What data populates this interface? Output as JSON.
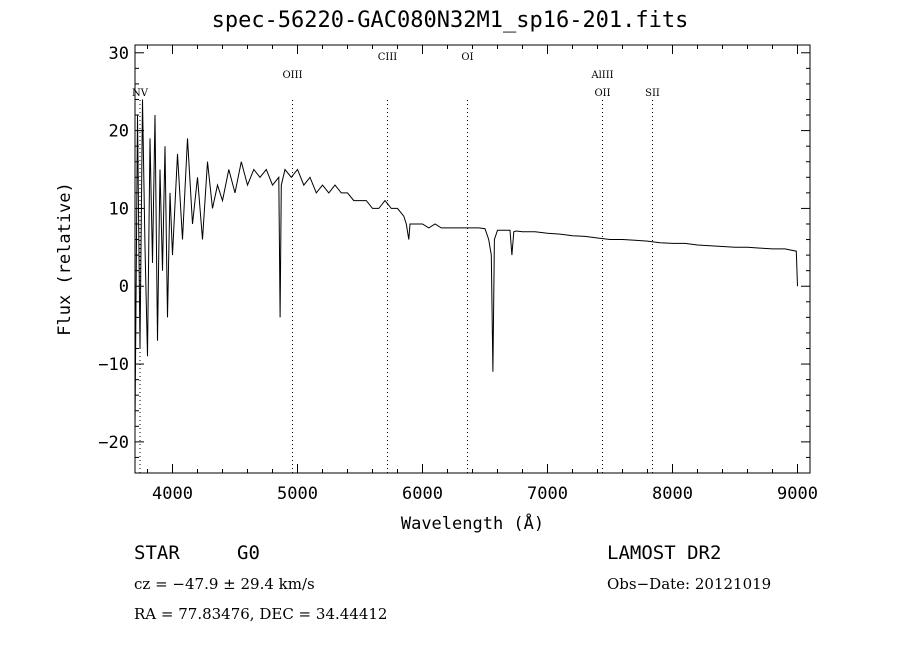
{
  "chart_data": {
    "type": "line",
    "title": "spec-56220-GAC080N32M1_sp16-201.fits",
    "xlabel": "Wavelength (Å)",
    "ylabel": "Flux (relative)",
    "xlim": [
      3700,
      9100
    ],
    "ylim": [
      -24,
      31
    ],
    "x_ticks": [
      "4000",
      "5000",
      "6000",
      "7000",
      "8000",
      "9000"
    ],
    "y_ticks": [
      "30",
      "20",
      "10",
      "0",
      "−10",
      "−20"
    ],
    "x_tick_values": [
      4000,
      5000,
      6000,
      7000,
      8000,
      9000
    ],
    "y_tick_values": [
      30,
      20,
      10,
      0,
      -10,
      -20
    ],
    "grid": false,
    "series": [
      {
        "color": "#000000",
        "x": [
          3700,
          3720,
          3740,
          3760,
          3780,
          3800,
          3820,
          3840,
          3860,
          3880,
          3900,
          3920,
          3940,
          3960,
          3980,
          4000,
          4040,
          4080,
          4120,
          4160,
          4200,
          4240,
          4280,
          4320,
          4360,
          4400,
          4450,
          4500,
          4550,
          4600,
          4650,
          4700,
          4750,
          4800,
          4850,
          4861,
          4870,
          4900,
          4950,
          5000,
          5050,
          5100,
          5150,
          5200,
          5250,
          5300,
          5350,
          5400,
          5450,
          5500,
          5550,
          5600,
          5650,
          5700,
          5750,
          5800,
          5850,
          5870,
          5890,
          5900,
          5950,
          6000,
          6050,
          6100,
          6150,
          6200,
          6250,
          6300,
          6350,
          6400,
          6450,
          6500,
          6530,
          6550,
          6563,
          6575,
          6600,
          6650,
          6700,
          6715,
          6730,
          6750,
          6800,
          6900,
          7000,
          7100,
          7200,
          7300,
          7400,
          7500,
          7600,
          7700,
          7800,
          7900,
          8000,
          8100,
          8200,
          8300,
          8400,
          8500,
          8600,
          8700,
          8800,
          8900,
          8990,
          9000
        ],
        "y": [
          -18,
          22,
          -8,
          24,
          5,
          -9,
          19,
          3,
          22,
          -7,
          15,
          2,
          18,
          -4,
          12,
          4,
          17,
          6,
          19,
          8,
          14,
          6,
          16,
          10,
          13,
          11,
          15,
          12,
          16,
          13,
          15,
          14,
          15,
          13,
          14,
          -4,
          13,
          15,
          14,
          15,
          13,
          14,
          12,
          13,
          12,
          13,
          12,
          12,
          11,
          11,
          11,
          10,
          10,
          11,
          10,
          10,
          9,
          8,
          6,
          8,
          8,
          8,
          7.5,
          8,
          7.5,
          7.5,
          7.5,
          7.5,
          7.5,
          7.5,
          7.5,
          7.4,
          6,
          4,
          -11,
          6,
          7.2,
          7.2,
          7.2,
          4,
          7,
          7.1,
          7,
          7,
          6.8,
          6.7,
          6.5,
          6.4,
          6.2,
          6,
          6,
          5.9,
          5.8,
          5.6,
          5.5,
          5.5,
          5.3,
          5.2,
          5.1,
          5,
          5,
          4.9,
          4.8,
          4.8,
          4.5,
          0
        ]
      }
    ],
    "lines": [
      {
        "label": "NV",
        "x": 3740
      },
      {
        "label": "OIII",
        "x": 4960
      },
      {
        "label": "CIII",
        "x": 5720
      },
      {
        "label": "OI",
        "x": 6360
      },
      {
        "label": "AlIII",
        "x": 7440
      },
      {
        "label": "OII",
        "x": 7440
      },
      {
        "label": "SII",
        "x": 7840
      }
    ]
  },
  "footer": {
    "object_class": "STAR",
    "subclass": "G0",
    "survey": "LAMOST DR2",
    "cz": "cz = −47.9 ± 29.4 km/s",
    "obs_date": "Obs−Date: 20121019",
    "coords": "RA =  77.83476, DEC =  34.44412"
  }
}
